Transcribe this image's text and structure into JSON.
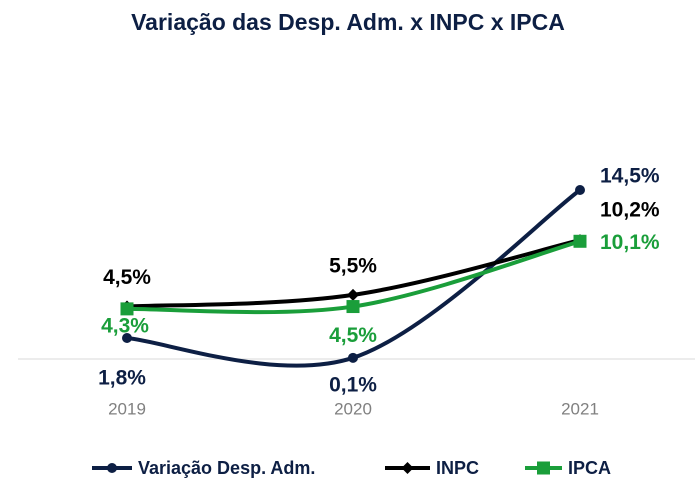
{
  "chart_data": {
    "type": "line",
    "title": "Variação das Desp. Adm. x INPC x IPCA",
    "categories": [
      "2019",
      "2020",
      "2021"
    ],
    "series": [
      {
        "name": "Variação Desp. Adm.",
        "color": "#0d1f44",
        "marker": "circle",
        "values": [
          1.8,
          0.1,
          14.5
        ],
        "value_labels": [
          "1,8%",
          "0,1%",
          "14,5%"
        ]
      },
      {
        "name": "INPC",
        "color": "#000000",
        "marker": "diamond",
        "values": [
          4.5,
          5.5,
          10.2
        ],
        "value_labels": [
          "4,5%",
          "5,5%",
          "10,2%"
        ]
      },
      {
        "name": "IPCA",
        "color": "#1a9e3a",
        "marker": "square",
        "values": [
          4.3,
          4.5,
          10.1
        ],
        "value_labels": [
          "4,3%",
          "4,5%",
          "10,1%"
        ]
      }
    ],
    "smooth": true,
    "legend": "bottom"
  }
}
